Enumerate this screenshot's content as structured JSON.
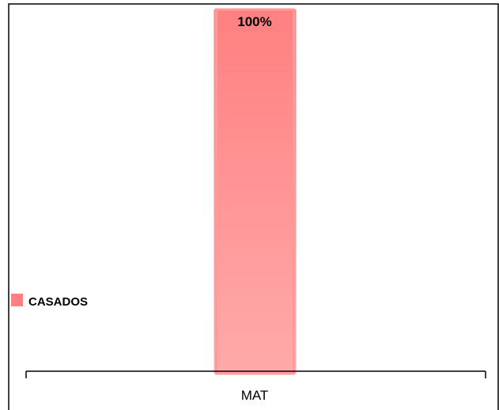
{
  "chart_data": {
    "type": "bar",
    "categories": [
      "MAT"
    ],
    "series": [
      {
        "name": "CASADOS",
        "values": [
          100
        ]
      }
    ],
    "data_labels": [
      "100%"
    ],
    "ylim": [
      0,
      100
    ],
    "grid": false,
    "legend_position": "left",
    "colors": {
      "bar": "#ff8080",
      "bar_light": "#ffaaaa",
      "axis": "#000000"
    }
  }
}
